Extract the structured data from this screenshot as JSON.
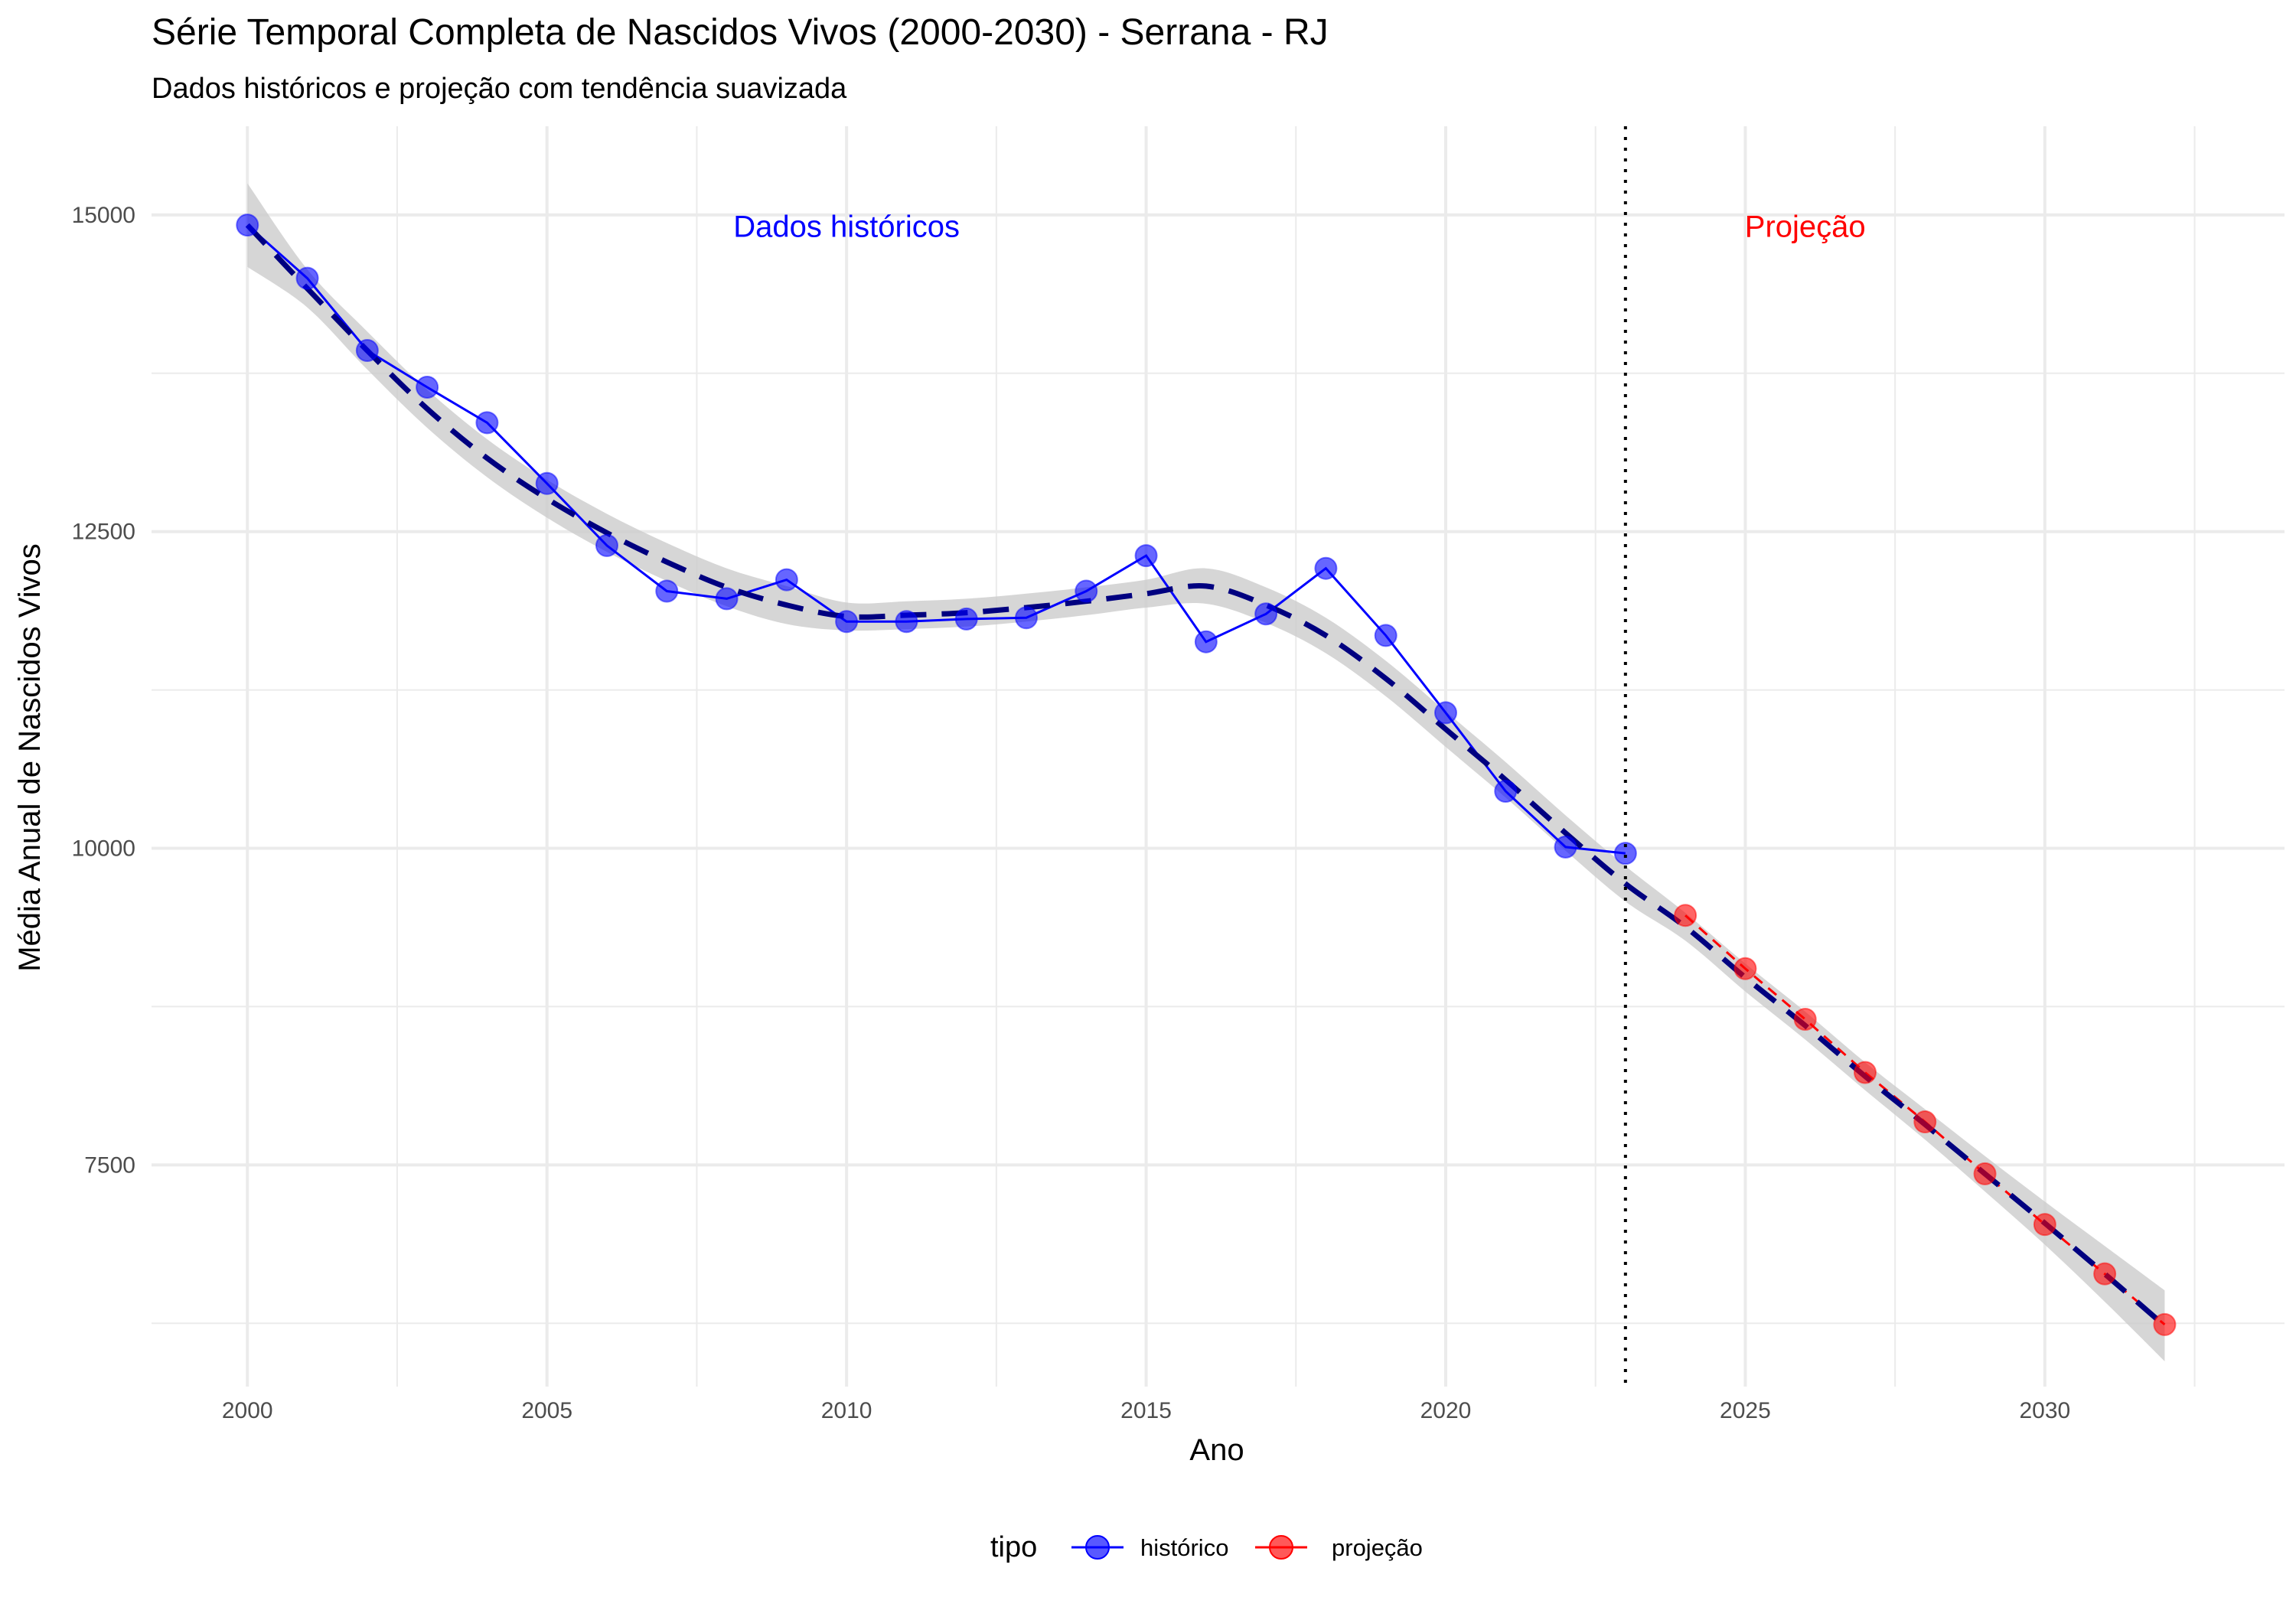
{
  "chart_data": {
    "type": "line",
    "title": "Série Temporal Completa de Nascidos Vivos (2000-2030) -  Serrana - RJ",
    "subtitle": "Dados históricos e projeção com tendência suavizada",
    "xlabel": "Ano",
    "ylabel": "Média Anual de Nascidos Vivos",
    "xlim": [
      1998.4,
      2034.0
    ],
    "ylim": [
      5750,
      15700
    ],
    "x_ticks": [
      2000,
      2005,
      2010,
      2015,
      2020,
      2025,
      2030
    ],
    "x_tick_labels": [
      "2000",
      "2005",
      "2010",
      "2015",
      "2020",
      "2025",
      "2030"
    ],
    "y_ticks": [
      7500,
      10000,
      12500,
      15000
    ],
    "y_tick_labels": [
      "7500",
      "10000",
      "12500",
      "15000"
    ],
    "grid": true,
    "legend_position": "bottom",
    "legend_title": "tipo",
    "divider_x": 2023,
    "annotations": [
      {
        "text": "Dados históricos",
        "x": 2010.0,
        "y": 14900,
        "color": "#0000ff"
      },
      {
        "text": "Projeção",
        "x": 2026.0,
        "y": 14900,
        "color": "#ff0000"
      }
    ],
    "series": [
      {
        "name": "histórico",
        "color": "#0000ff",
        "points": [
          [
            2000,
            14920
          ],
          [
            2001,
            14500
          ],
          [
            2002,
            13930
          ],
          [
            2003,
            13640
          ],
          [
            2004,
            13360
          ],
          [
            2005,
            12880
          ],
          [
            2006,
            12390
          ],
          [
            2007,
            12030
          ],
          [
            2008,
            11970
          ],
          [
            2009,
            12120
          ],
          [
            2010,
            11790
          ],
          [
            2011,
            11790
          ],
          [
            2012,
            11810
          ],
          [
            2013,
            11820
          ],
          [
            2014,
            12030
          ],
          [
            2015,
            12310
          ],
          [
            2016,
            11630
          ],
          [
            2017,
            11850
          ],
          [
            2018,
            12210
          ],
          [
            2019,
            11680
          ],
          [
            2020,
            11070
          ],
          [
            2021,
            10450
          ],
          [
            2022,
            10010
          ],
          [
            2023,
            9960
          ]
        ]
      },
      {
        "name": "projeção",
        "color": "#ff0000",
        "points": [
          [
            2024,
            9470
          ],
          [
            2025,
            9050
          ],
          [
            2026,
            8650
          ],
          [
            2027,
            8230
          ],
          [
            2028,
            7840
          ],
          [
            2029,
            7430
          ],
          [
            2030,
            7030
          ],
          [
            2031,
            6640
          ],
          [
            2032,
            6240
          ]
        ]
      }
    ],
    "trend": {
      "color": "#000080",
      "band_color": "#cccccc",
      "points": [
        [
          2000,
          14920
        ],
        [
          2001,
          14420
        ],
        [
          2002,
          13930
        ],
        [
          2003,
          13470
        ],
        [
          2004,
          13080
        ],
        [
          2005,
          12760
        ],
        [
          2006,
          12490
        ],
        [
          2007,
          12260
        ],
        [
          2008,
          12060
        ],
        [
          2009,
          11920
        ],
        [
          2010,
          11830
        ],
        [
          2011,
          11840
        ],
        [
          2012,
          11860
        ],
        [
          2013,
          11900
        ],
        [
          2014,
          11950
        ],
        [
          2015,
          12010
        ],
        [
          2016,
          12070
        ],
        [
          2017,
          11920
        ],
        [
          2018,
          11680
        ],
        [
          2019,
          11340
        ],
        [
          2020,
          10940
        ],
        [
          2021,
          10540
        ],
        [
          2022,
          10120
        ],
        [
          2023,
          9720
        ],
        [
          2024,
          9380
        ],
        [
          2025,
          8980
        ],
        [
          2026,
          8600
        ],
        [
          2027,
          8200
        ],
        [
          2028,
          7820
        ],
        [
          2029,
          7430
        ],
        [
          2030,
          7040
        ],
        [
          2031,
          6640
        ],
        [
          2032,
          6230
        ]
      ],
      "band_half_width": [
        330,
        150,
        150,
        150,
        150,
        150,
        150,
        150,
        150,
        150,
        110,
        110,
        110,
        110,
        110,
        110,
        140,
        140,
        140,
        140,
        140,
        140,
        140,
        140,
        110,
        110,
        110,
        110,
        120,
        140,
        170,
        220,
        280
      ]
    }
  }
}
